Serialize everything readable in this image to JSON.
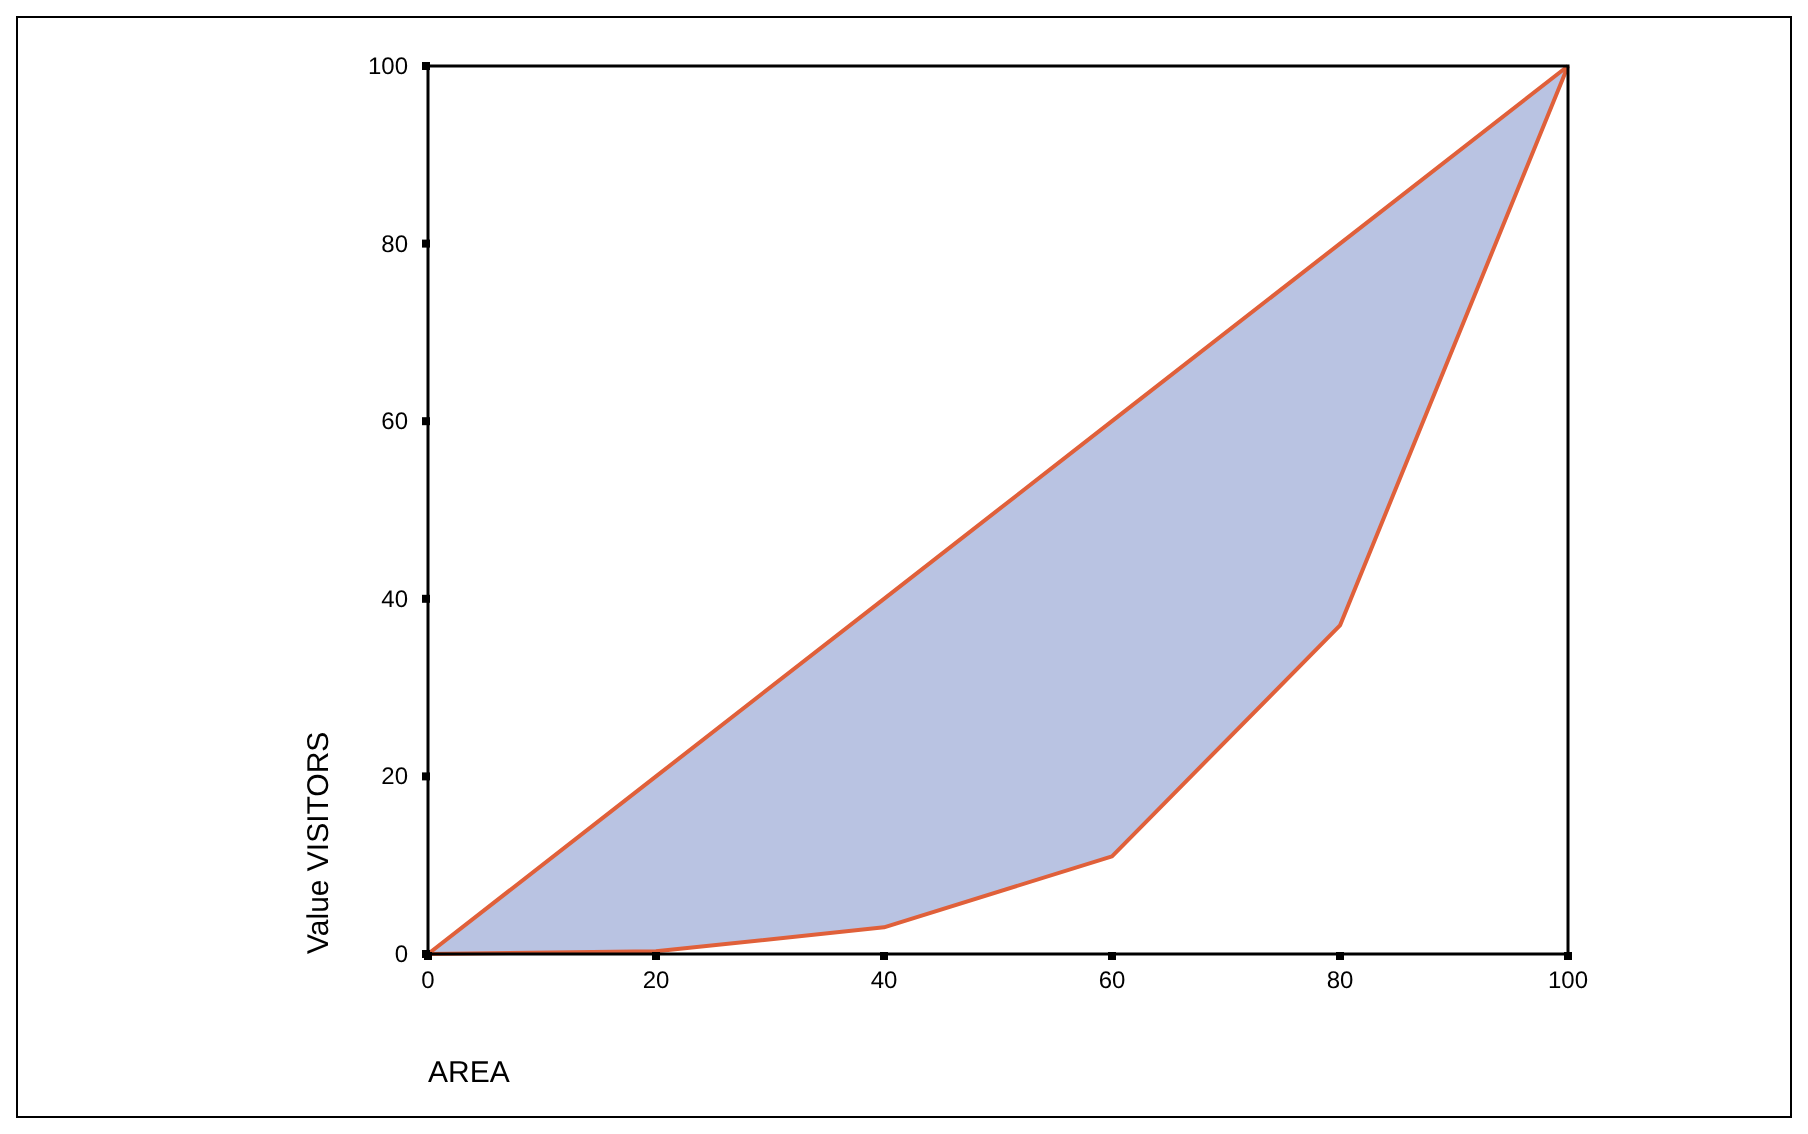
{
  "chart_data": {
    "type": "line",
    "xlabel": "AREA",
    "ylabel": "Value VISITORS",
    "x": [
      0,
      20,
      40,
      60,
      80,
      100
    ],
    "series": [
      {
        "color": "#e0603a",
        "values": [
          0,
          20,
          40,
          60,
          80,
          100
        ]
      },
      {
        "color": "#e0603a",
        "values": [
          0,
          0.3,
          3,
          11,
          37,
          100
        ],
        "upper": [
          0,
          20,
          40,
          60,
          80,
          100
        ],
        "lower": [
          0,
          0.3,
          3,
          11,
          37,
          100
        ]
      }
    ],
    "xlim": [
      0,
      100
    ],
    "ylim": [
      0,
      100
    ],
    "xticks": [
      0,
      20,
      40,
      60,
      80,
      100
    ],
    "yticks": [
      0,
      20,
      40,
      60,
      80,
      100
    ],
    "grid": false,
    "marker": "none",
    "line_style": "solid"
  }
}
